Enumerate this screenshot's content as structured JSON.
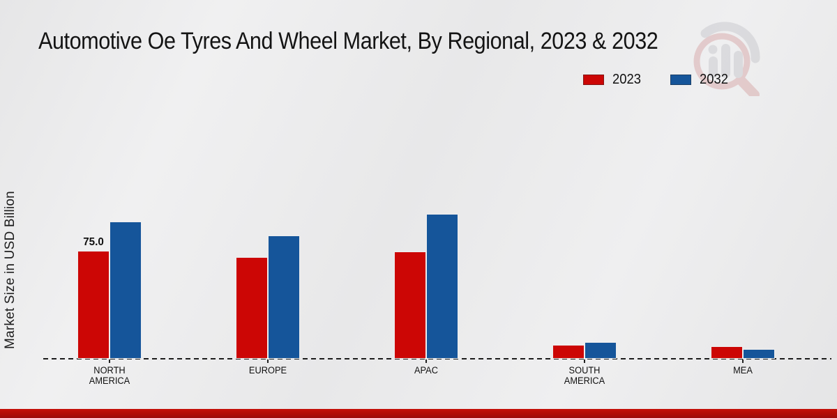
{
  "title": "Automotive Oe Tyres And Wheel Market, By Regional, 2023 & 2032",
  "watermark_icon": "magnifier-bar-chart-logo",
  "chart_data": {
    "type": "bar",
    "title": "Automotive Oe Tyres And Wheel Market, By Regional, 2023 & 2032",
    "xlabel": "",
    "ylabel": "Market Size in USD Billion",
    "categories": [
      "NORTH AMERICA",
      "EUROPE",
      "APAC",
      "SOUTH AMERICA",
      "MEA"
    ],
    "category_label_lines": [
      [
        "NORTH",
        "AMERICA"
      ],
      [
        "EUROPE"
      ],
      [
        "APAC"
      ],
      [
        "SOUTH",
        "AMERICA"
      ],
      [
        "MEA"
      ]
    ],
    "series": [
      {
        "name": "2023",
        "color": "#cc0605",
        "values": [
          75.0,
          70.5,
          74.5,
          9.5,
          8.5
        ],
        "value_labels": [
          "75.0",
          null,
          null,
          null,
          null
        ]
      },
      {
        "name": "2032",
        "color": "#15559a",
        "values": [
          95.5,
          85.5,
          100.5,
          11.5,
          7.0
        ],
        "value_labels": [
          null,
          null,
          null,
          null,
          null
        ]
      }
    ],
    "ylim": [
      0,
      110
    ],
    "grid": false,
    "legend_position": "top-right",
    "baseline_style": "dashed",
    "unit": "USD Billion"
  },
  "accent": {
    "bottom_bar_color_top": "#c51008",
    "bottom_bar_color_bottom": "#9c0a09"
  }
}
